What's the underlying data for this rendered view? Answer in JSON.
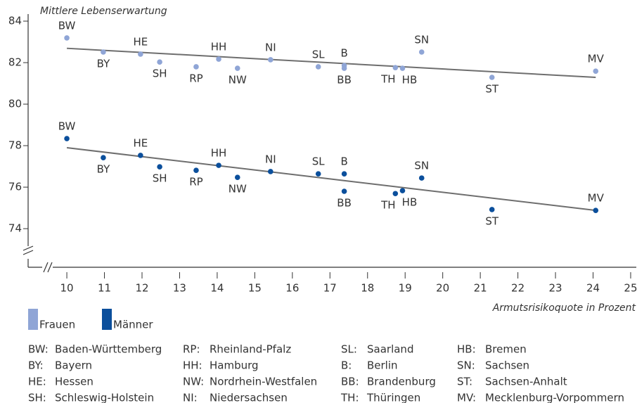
{
  "chart_data": {
    "type": "scatter",
    "ylabel": "Mittlere Lebenserwartung",
    "xlabel": "Armutsrisikoquote in Prozent",
    "xlim": [
      8.97,
      25.15
    ],
    "ylim": [
      72.14,
      84.34
    ],
    "xticks": [
      10,
      11,
      12,
      13,
      14,
      15,
      16,
      17,
      18,
      19,
      20,
      21,
      22,
      23,
      24,
      25
    ],
    "yticks": [
      74,
      76,
      78,
      80,
      82,
      84
    ],
    "point_labels": [
      "BW",
      "BY",
      "HE",
      "SH",
      "RP",
      "HH",
      "NW",
      "NI",
      "SL",
      "B",
      "BB",
      "TH",
      "HB",
      "SN",
      "ST",
      "MV"
    ],
    "x": [
      10.0,
      10.97,
      11.96,
      12.47,
      13.44,
      14.04,
      14.54,
      15.42,
      16.69,
      17.38,
      17.38,
      18.74,
      18.93,
      19.44,
      21.31,
      24.07
    ],
    "series": [
      {
        "name": "Frauen",
        "color": "#8fa5d6",
        "values": [
          83.19,
          82.51,
          82.41,
          82.03,
          81.8,
          82.17,
          81.73,
          82.14,
          81.8,
          81.86,
          81.73,
          81.76,
          81.73,
          82.51,
          81.29,
          81.59
        ],
        "trend_x": [
          10.0,
          24.07
        ],
        "trend": [
          82.69,
          81.29
        ]
      },
      {
        "name": "Männer",
        "color": "#0b4f9c",
        "values": [
          78.34,
          77.42,
          77.53,
          76.98,
          76.81,
          77.05,
          76.47,
          76.75,
          76.64,
          76.64,
          75.8,
          75.69,
          75.83,
          76.44,
          74.92,
          74.88
        ],
        "trend_x": [
          10.0,
          24.07
        ],
        "trend": [
          77.9,
          74.88
        ]
      }
    ],
    "trend_color": "#6e6e6e",
    "key": [
      [
        {
          "abbr": "BW:",
          "name": "Baden-Württemberg"
        },
        {
          "abbr": "BY:",
          "name": "Bayern"
        },
        {
          "abbr": "HE:",
          "name": "Hessen"
        },
        {
          "abbr": "SH:",
          "name": "Schleswig-Holstein"
        }
      ],
      [
        {
          "abbr": "RP:",
          "name": "Rheinland-Pfalz"
        },
        {
          "abbr": "HH:",
          "name": "Hamburg"
        },
        {
          "abbr": "NW:",
          "name": "Nordrhein-Westfalen"
        },
        {
          "abbr": "NI:",
          "name": "Niedersachsen"
        }
      ],
      [
        {
          "abbr": "SL:",
          "name": "Saarland"
        },
        {
          "abbr": "B:",
          "name": "Berlin"
        },
        {
          "abbr": "BB:",
          "name": "Brandenburg"
        },
        {
          "abbr": "TH:",
          "name": "Thüringen"
        }
      ],
      [
        {
          "abbr": "HB:",
          "name": "Bremen"
        },
        {
          "abbr": "SN:",
          "name": "Sachsen"
        },
        {
          "abbr": "ST:",
          "name": "Sachsen-Anhalt"
        },
        {
          "abbr": "MV:",
          "name": "Mecklenburg-Vorpommern"
        }
      ]
    ]
  }
}
